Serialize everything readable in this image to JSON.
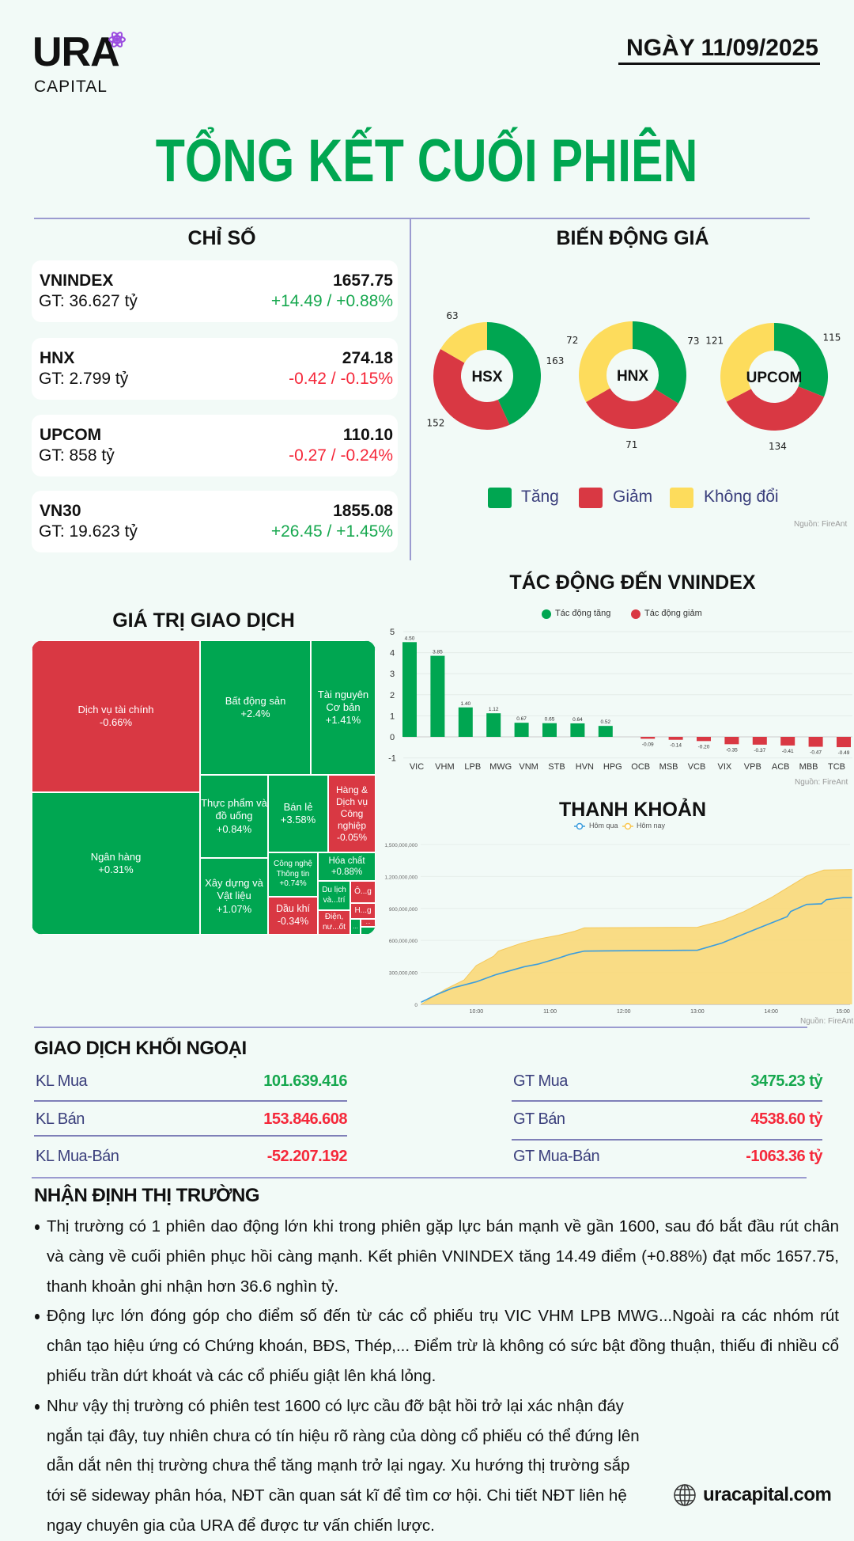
{
  "header": {
    "logo_main": "URA",
    "logo_sub": "CAPITAL",
    "date": "NGÀY 11/09/2025",
    "title": "TỔNG KẾT CUỐI PHIÊN"
  },
  "indices": {
    "heading": "CHỈ SỐ",
    "items": [
      {
        "name": "VNINDEX",
        "value_traded": "GT: 36.627 tỷ",
        "close": "1657.75",
        "change": "+14.49 / +0.88%",
        "direction": "up"
      },
      {
        "name": "HNX",
        "value_traded": "GT: 2.799 tỷ",
        "close": "274.18",
        "change": "-0.42 / -0.15%",
        "direction": "down"
      },
      {
        "name": "UPCOM",
        "value_traded": "GT: 858 tỷ",
        "close": "110.10",
        "change": "-0.27 / -0.24%",
        "direction": "down"
      },
      {
        "name": "VN30",
        "value_traded": "GT: 19.623 tỷ",
        "close": "1855.08",
        "change": "+26.45 / +1.45%",
        "direction": "up"
      }
    ]
  },
  "breadth": {
    "heading": "BIẾN ĐỘNG GIÁ",
    "source": "Nguồn: FireAnt",
    "legend": [
      "Tăng",
      "Giảm",
      "Không đổi"
    ],
    "colors": {
      "up": "#00a651",
      "down": "#d93843",
      "flat": "#fddc5c"
    },
    "exchanges": [
      {
        "name": "HSX",
        "up": 163,
        "down": 152,
        "flat": 63
      },
      {
        "name": "HNX",
        "up": 73,
        "down": 71,
        "flat": 72
      },
      {
        "name": "UPCOM",
        "up": 115,
        "down": 134,
        "flat": 121
      }
    ]
  },
  "treemap": {
    "heading": "GIÁ TRỊ GIAO DỊCH",
    "sectors": [
      {
        "name": "Dịch vụ tài chính",
        "change": "-0.66%"
      },
      {
        "name": "Ngân hàng",
        "change": "+0.31%"
      },
      {
        "name": "Bất động sản",
        "change": "+2.4%"
      },
      {
        "name": "Tài nguyên Cơ bản",
        "change": "+1.41%"
      },
      {
        "name": "Thực phẩm và đồ uống",
        "change": "+0.84%"
      },
      {
        "name": "Xây dựng và Vật liệu",
        "change": "+1.07%"
      },
      {
        "name": "Bán lẻ",
        "change": "+3.58%"
      },
      {
        "name": "Hàng & Dịch vụ Công nghiệp",
        "change": "-0.05%"
      },
      {
        "name": "Công nghệ Thông tin",
        "change": "+0.74%"
      },
      {
        "name": "Hóa chất",
        "change": "+0.88%"
      },
      {
        "name": "Dầu khí",
        "change": "-0.34%"
      },
      {
        "name": "Du lịch và...trí",
        "change": ""
      },
      {
        "name": "Ô...g",
        "change": ""
      },
      {
        "name": "H...g",
        "change": ""
      },
      {
        "name": "Điện, nư...ốt",
        "change": ""
      },
      {
        "name": "...",
        "change": ""
      },
      {
        "name": "...",
        "change": ""
      }
    ]
  },
  "chart_data": [
    {
      "type": "bar",
      "title": "TÁC ĐỘNG ĐẾN VNINDEX",
      "source": "Nguồn: FireAnt",
      "legend": [
        "Tác động tăng",
        "Tác động giảm"
      ],
      "categories": [
        "VIC",
        "VHM",
        "LPB",
        "MWG",
        "VNM",
        "STB",
        "HVN",
        "HPG",
        "OCB",
        "MSB",
        "VCB",
        "VIX",
        "VPB",
        "ACB",
        "MBB",
        "TCB"
      ],
      "values": [
        4.5,
        3.85,
        1.4,
        1.12,
        0.67,
        0.65,
        0.64,
        0.52,
        -0.09,
        -0.14,
        -0.2,
        -0.35,
        -0.37,
        -0.41,
        -0.47,
        -0.49
      ],
      "value_labels": [
        "4.50",
        "3.85",
        "1.40",
        "1.12",
        "0.67",
        "0.65",
        "0.64",
        "0.52",
        "-0.09",
        "-0.14",
        "-0.20",
        "-0.35",
        "-0.37",
        "-0.41",
        "-0.47",
        "-0.49"
      ],
      "ylim": [
        -1,
        5
      ],
      "yticks": [
        "5",
        "4",
        "3",
        "2",
        "1",
        "0",
        "-1"
      ],
      "colors": {
        "up": "#00a651",
        "down": "#d93843"
      }
    },
    {
      "type": "area",
      "title": "THANH KHOẢN",
      "source": "Nguồn: FireAnt",
      "y_unit": "shares (millions)",
      "yticks": [
        "1,500,000,000",
        "1,200,000,000",
        "900,000,000",
        "600,000,000",
        "300,000,000",
        "0"
      ],
      "ylim": [
        0,
        1500
      ],
      "xticks": [
        "10:00",
        "11:00",
        "12:00",
        "13:00",
        "14:00",
        "15:00"
      ],
      "series": [
        {
          "name": "Hôm qua",
          "color": "#3b9ddd",
          "points": [
            [
              "09:15",
              20
            ],
            [
              "09:28",
              94
            ],
            [
              "09:41",
              155
            ],
            [
              "10:00",
              212
            ],
            [
              "10:16",
              279
            ],
            [
              "10:39",
              353
            ],
            [
              "10:50",
              377
            ],
            [
              "11:07",
              434
            ],
            [
              "11:16",
              469
            ],
            [
              "11:28",
              500
            ],
            [
              "13:00",
              508
            ],
            [
              "13:20",
              575
            ],
            [
              "13:38",
              661
            ],
            [
              "13:54",
              735
            ],
            [
              "14:13",
              822
            ],
            [
              "14:16",
              871
            ],
            [
              "14:29",
              938
            ],
            [
              "14:41",
              943
            ],
            [
              "14:45",
              982
            ],
            [
              "14:59",
              1002
            ],
            [
              "15:06",
              1002
            ]
          ]
        },
        {
          "name": "Hôm nay",
          "color": "#f9c74f",
          "points": [
            [
              "09:15",
              0
            ],
            [
              "09:35",
              143
            ],
            [
              "09:50",
              229
            ],
            [
              "10:00",
              365
            ],
            [
              "10:14",
              451
            ],
            [
              "10:18",
              500
            ],
            [
              "10:37",
              575
            ],
            [
              "10:50",
              612
            ],
            [
              "11:07",
              649
            ],
            [
              "11:20",
              686
            ],
            [
              "11:28",
              718
            ],
            [
              "13:00",
              723
            ],
            [
              "13:20",
              785
            ],
            [
              "13:38",
              871
            ],
            [
              "14:01",
              1007
            ],
            [
              "14:29",
              1204
            ],
            [
              "14:43",
              1260
            ],
            [
              "15:06",
              1265
            ]
          ]
        }
      ]
    }
  ],
  "foreign": {
    "heading": "GIAO DỊCH KHỐI NGOẠI",
    "left": [
      {
        "label": "KL Mua",
        "value": "101.639.416",
        "direction": "up"
      },
      {
        "label": "KL Bán",
        "value": "153.846.608",
        "direction": "down"
      },
      {
        "label": "KL Mua-Bán",
        "value": "-52.207.192",
        "direction": "down"
      }
    ],
    "right": [
      {
        "label": "GT Mua",
        "value": "3475.23 tỷ",
        "direction": "up"
      },
      {
        "label": "GT Bán",
        "value": "4538.60 tỷ",
        "direction": "down"
      },
      {
        "label": "GT Mua-Bán",
        "value": "-1063.36 tỷ",
        "direction": "down"
      }
    ]
  },
  "commentary": {
    "heading": "NHẬN ĐỊNH THỊ TRƯỜNG",
    "bullets": [
      "Thị trường có 1 phiên dao động lớn khi trong phiên gặp lực bán mạnh về gần 1600, sau đó bắt đầu rút chân và càng về cuối phiên phục hồi càng mạnh. Kết phiên VNINDEX tăng 14.49 điểm (+0.88%) đạt mốc 1657.75, thanh khoản ghi nhận hơn 36.6 nghìn tỷ.",
      "Động lực lớn đóng góp cho điểm số đến từ các cổ phiếu trụ VIC VHM LPB MWG...Ngoài ra các nhóm rút chân tạo hiệu ứng có Chứng khoán, BĐS, Thép,... Điểm trừ là không có sức bật đồng thuận, thiếu đi nhiều cổ phiếu trần dứt khoát và các cổ phiếu giật lên khá lỏng.",
      "Như vậy thị trường có phiên test 1600 có lực cầu đỡ bật hồi trở lại xác nhận đáy ngắn tại đây, tuy nhiên chưa có tín hiệu rõ ràng của dòng cổ phiếu có thể đứng lên dẫn dắt nên thị trường chưa thể tăng mạnh trở lại ngay. Xu hướng thị trường sắp tới sẽ sideway phân hóa, NĐT cần quan sát kĩ để tìm cơ hội. Chi tiết NĐT liên hệ ngay chuyên gia của URA để được tư vấn chiến lược."
    ],
    "website": "uracapital.com"
  }
}
